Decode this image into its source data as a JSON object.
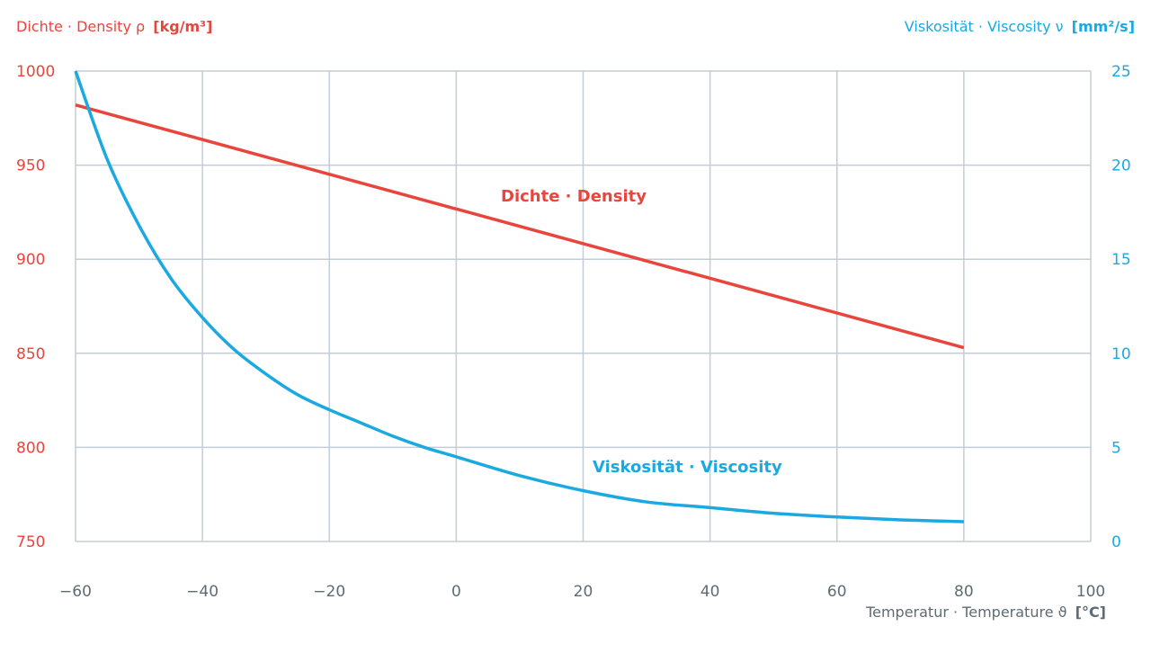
{
  "chart_data": {
    "type": "line",
    "colors": {
      "density": "#e8453c",
      "viscosity": "#1aa9e0",
      "grid": "#c3cdd4",
      "x_axis_text": "#5f6b73"
    },
    "y_left": {
      "label": "Dichte · Density ρ",
      "unit": "[kg/m³]",
      "range": [
        750,
        1000
      ],
      "ticks": [
        "1000",
        "950",
        "900",
        "850",
        "800",
        "750"
      ],
      "tick_values": [
        1000,
        950,
        900,
        850,
        800,
        750
      ]
    },
    "y_right": {
      "label": "Viskosität · Viscosity ν",
      "unit": "[mm²/s]",
      "range": [
        0,
        25
      ],
      "ticks": [
        "25",
        "20",
        "15",
        "10",
        "5",
        "0"
      ],
      "tick_values": [
        25,
        20,
        15,
        10,
        5,
        0
      ]
    },
    "x_axis": {
      "label": "Temperatur · Temperature ϑ",
      "unit": "[°C]",
      "range": [
        -60,
        100
      ],
      "ticks": [
        "−60",
        "−40",
        "−20",
        "0",
        "20",
        "40",
        "60",
        "80",
        "100"
      ],
      "tick_values": [
        -60,
        -40,
        -20,
        0,
        20,
        40,
        60,
        80,
        100
      ]
    },
    "grid": true,
    "series": [
      {
        "name": "Dichte · Density",
        "axis": "left",
        "x": [
          -60,
          80
        ],
        "y": [
          982,
          853
        ]
      },
      {
        "name": "Viskosität · Viscosity",
        "axis": "right",
        "x": [
          -60,
          -55,
          -50,
          -45,
          -40,
          -35,
          -30,
          -25,
          -20,
          -15,
          -10,
          -5,
          0,
          10,
          20,
          30,
          40,
          50,
          60,
          70,
          80
        ],
        "y": [
          25,
          20.3,
          16.8,
          14.0,
          11.9,
          10.2,
          8.9,
          7.8,
          7.0,
          6.3,
          5.6,
          5.0,
          4.5,
          3.5,
          2.7,
          2.1,
          1.8,
          1.5,
          1.3,
          1.15,
          1.05
        ]
      }
    ],
    "annotations": {
      "density_label": "Dichte · Density",
      "viscosity_label": "Viskosität · Viscosity"
    }
  }
}
